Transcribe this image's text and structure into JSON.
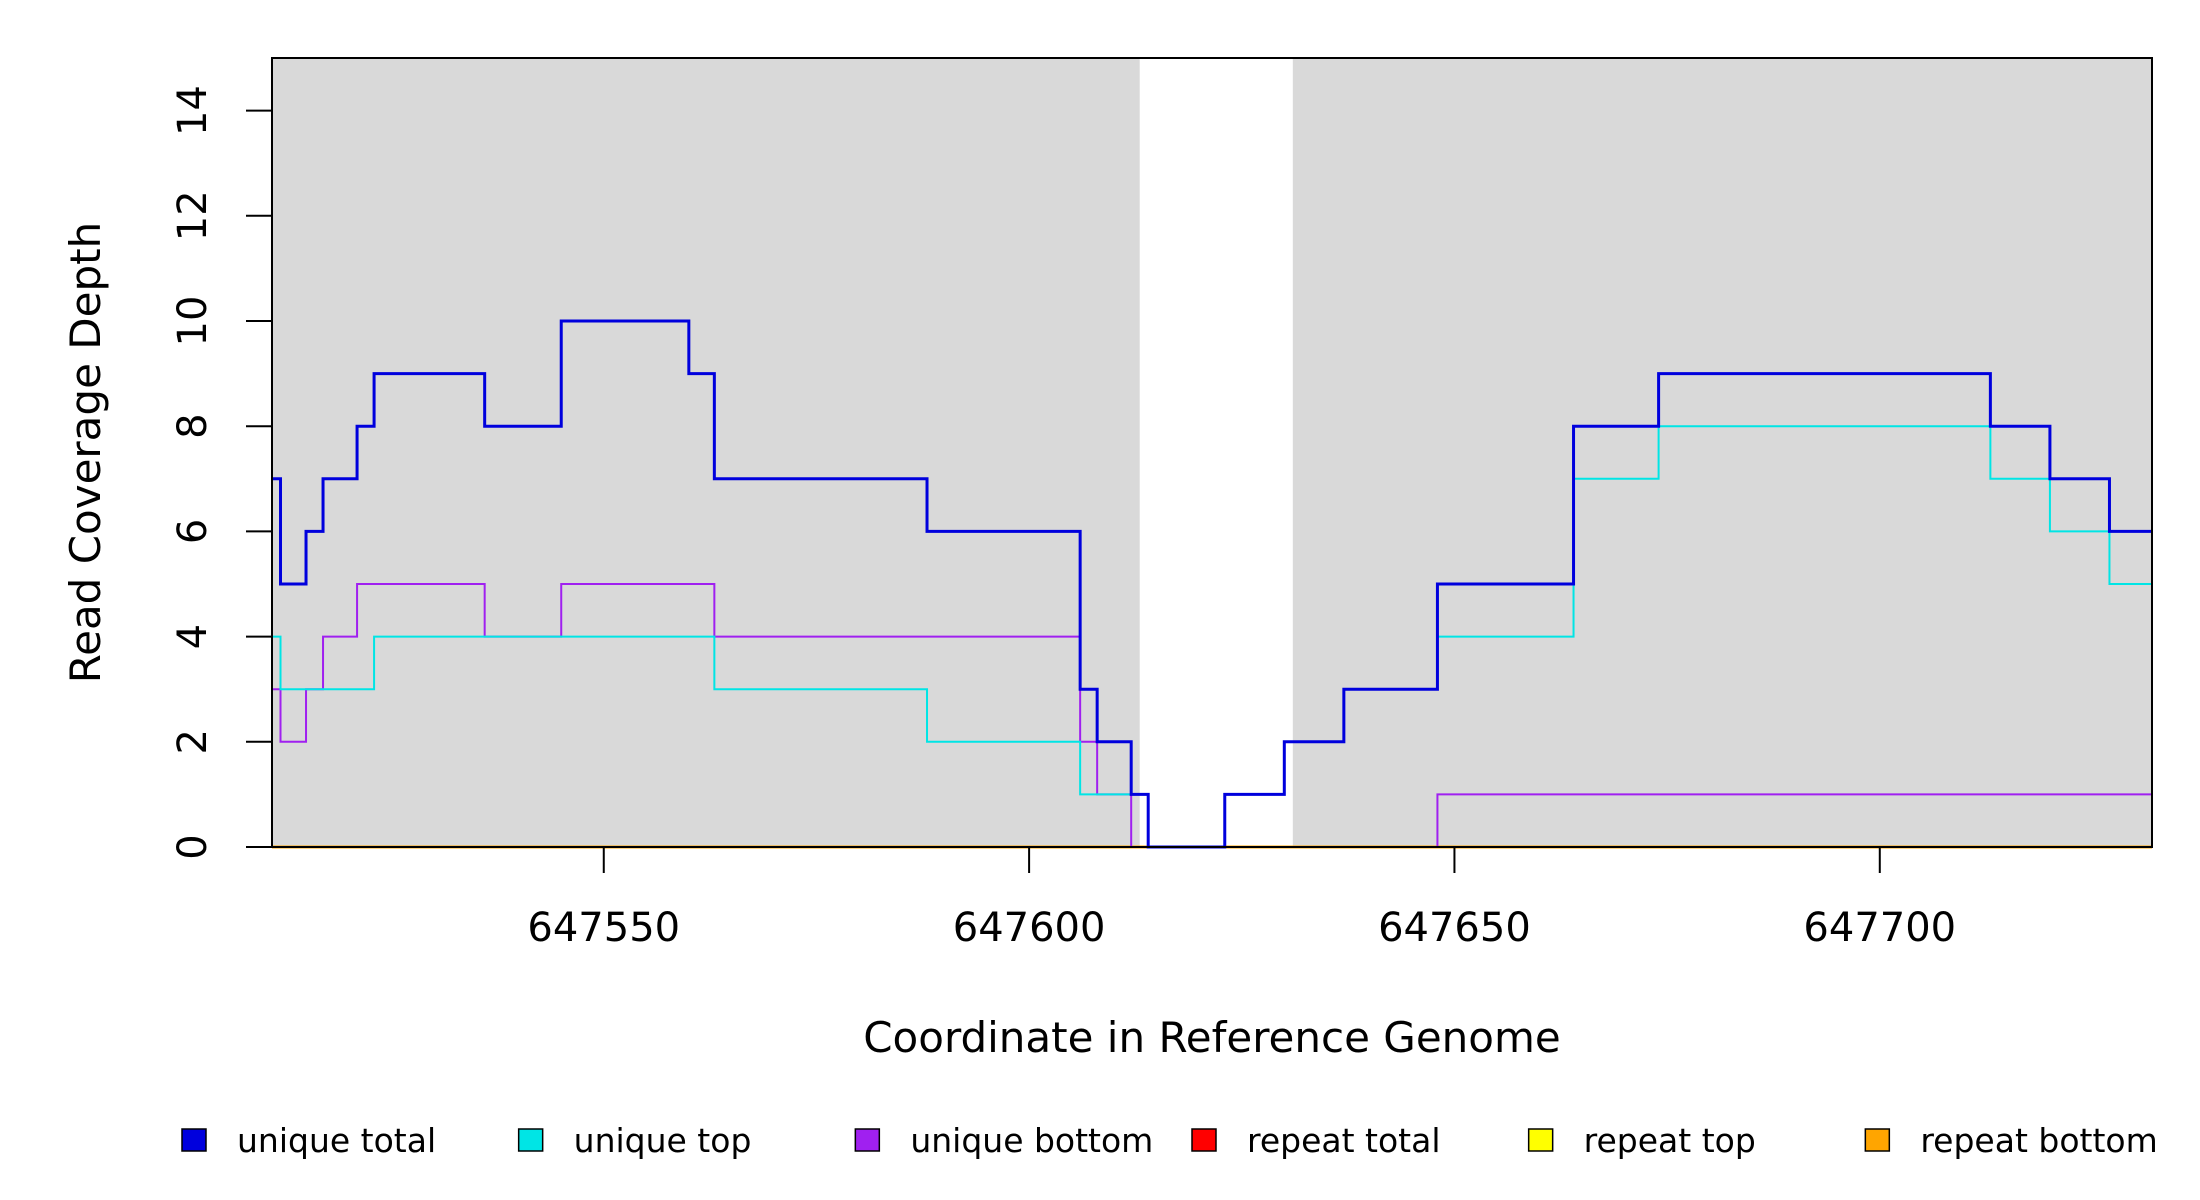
{
  "chart_data": {
    "type": "line",
    "step": true,
    "xlabel": "Coordinate in Reference Genome",
    "ylabel": "Read Coverage Depth",
    "xlim": [
      647511,
      647732
    ],
    "ylim": [
      0,
      15
    ],
    "x_ticks": [
      647550,
      647600,
      647650,
      647700
    ],
    "y_ticks": [
      0,
      2,
      4,
      6,
      8,
      10,
      12,
      14
    ],
    "shaded_regions": [
      [
        647511,
        647613
      ],
      [
        647631,
        647732
      ]
    ],
    "shade_color": "#d9d9d9",
    "legend_position": "bottom",
    "series": [
      {
        "name": "unique total",
        "color": "#0000dd",
        "points": [
          [
            647511,
            7
          ],
          [
            647512,
            5
          ],
          [
            647515,
            6
          ],
          [
            647517,
            7
          ],
          [
            647521,
            8
          ],
          [
            647523,
            9
          ],
          [
            647536,
            8
          ],
          [
            647545,
            10
          ],
          [
            647560,
            9
          ],
          [
            647563,
            7
          ],
          [
            647588,
            6
          ],
          [
            647606,
            3
          ],
          [
            647608,
            2
          ],
          [
            647612,
            1
          ],
          [
            647614,
            0
          ],
          [
            647623,
            1
          ],
          [
            647630,
            2
          ],
          [
            647637,
            3
          ],
          [
            647648,
            5
          ],
          [
            647664,
            8
          ],
          [
            647674,
            9
          ],
          [
            647713,
            8
          ],
          [
            647720,
            7
          ],
          [
            647727,
            6
          ],
          [
            647732,
            6
          ]
        ]
      },
      {
        "name": "unique top",
        "color": "#00e5e5",
        "points": [
          [
            647511,
            4
          ],
          [
            647512,
            3
          ],
          [
            647523,
            4
          ],
          [
            647560,
            4
          ],
          [
            647563,
            3
          ],
          [
            647588,
            2
          ],
          [
            647606,
            1
          ],
          [
            647608,
            1
          ],
          [
            647612,
            1
          ],
          [
            647614,
            0
          ],
          [
            647623,
            1
          ],
          [
            647630,
            2
          ],
          [
            647637,
            3
          ],
          [
            647648,
            4
          ],
          [
            647664,
            7
          ],
          [
            647674,
            8
          ],
          [
            647713,
            7
          ],
          [
            647720,
            6
          ],
          [
            647727,
            5
          ],
          [
            647732,
            5
          ]
        ]
      },
      {
        "name": "unique bottom",
        "color": "#a020f0",
        "points": [
          [
            647511,
            3
          ],
          [
            647512,
            2
          ],
          [
            647515,
            3
          ],
          [
            647517,
            4
          ],
          [
            647521,
            5
          ],
          [
            647536,
            4
          ],
          [
            647545,
            5
          ],
          [
            647563,
            4
          ],
          [
            647606,
            2
          ],
          [
            647608,
            1
          ],
          [
            647612,
            0
          ],
          [
            647648,
            1
          ],
          [
            647732,
            1
          ]
        ]
      },
      {
        "name": "repeat total",
        "color": "#ff0000",
        "points": [
          [
            647511,
            0
          ],
          [
            647732,
            0
          ]
        ]
      },
      {
        "name": "repeat top",
        "color": "#ffff00",
        "points": [
          [
            647511,
            0
          ],
          [
            647732,
            0
          ]
        ]
      },
      {
        "name": "repeat bottom",
        "color": "#ffa500",
        "points": [
          [
            647511,
            0
          ],
          [
            647732,
            0
          ]
        ]
      }
    ]
  }
}
